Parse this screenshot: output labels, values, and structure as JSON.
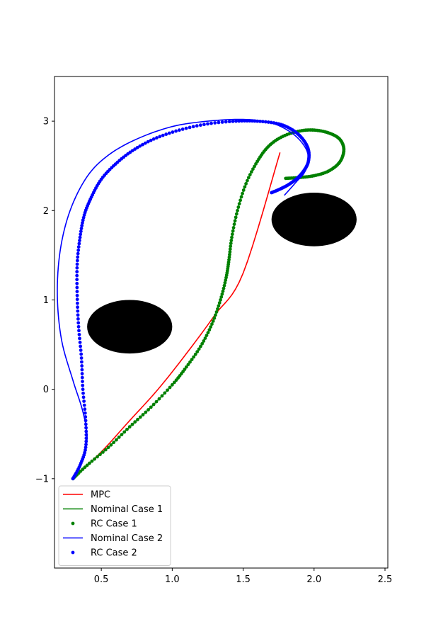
{
  "chart_data": {
    "type": "line",
    "title": "",
    "xlabel": "",
    "ylabel": "",
    "xlim": [
      0.17,
      2.52
    ],
    "ylim": [
      -2.0,
      3.5
    ],
    "x_ticks": [
      0.5,
      1.0,
      1.5,
      2.0,
      2.5
    ],
    "x_tick_labels": [
      "0.5",
      "1.0",
      "1.5",
      "2.0",
      "2.5"
    ],
    "y_ticks": [
      -1,
      0,
      1,
      2,
      3
    ],
    "y_tick_labels": [
      "−1",
      "0",
      "1",
      "2",
      "3"
    ],
    "grid": false,
    "legend_position": "lower-left",
    "obstacles": [
      {
        "name": "obstacle-1",
        "cx": 0.7,
        "cy": 0.7,
        "rx": 0.3,
        "ry": 0.3,
        "color": "#000000"
      },
      {
        "name": "obstacle-2",
        "cx": 2.0,
        "cy": 1.9,
        "rx": 0.3,
        "ry": 0.3,
        "color": "#000000"
      }
    ],
    "series": [
      {
        "name": "MPC",
        "style": "line",
        "color": "#ff0000",
        "x": [
          0.3,
          0.5,
          0.7,
          0.9,
          1.1,
          1.3,
          1.5,
          1.76
        ],
        "y": [
          -1.0,
          -0.7,
          -0.35,
          0.0,
          0.4,
          0.83,
          1.3,
          2.65
        ]
      },
      {
        "name": "Nominal Case 1",
        "style": "line",
        "color": "#008000",
        "x": [
          0.3,
          0.4,
          0.55,
          0.7,
          0.85,
          1.0,
          1.1,
          1.2,
          1.28,
          1.34,
          1.38,
          1.4,
          1.42,
          1.46,
          1.52,
          1.6,
          1.68,
          1.78,
          1.9,
          2.0,
          2.1,
          2.18,
          2.21,
          2.18,
          2.1,
          2.0,
          1.9,
          1.8
        ],
        "y": [
          -1.0,
          -0.85,
          -0.65,
          -0.42,
          -0.2,
          0.05,
          0.25,
          0.48,
          0.73,
          1.0,
          1.25,
          1.45,
          1.7,
          2.0,
          2.3,
          2.55,
          2.72,
          2.83,
          2.89,
          2.9,
          2.87,
          2.8,
          2.68,
          2.54,
          2.44,
          2.39,
          2.37,
          2.36
        ]
      },
      {
        "name": "RC Case 1",
        "style": "scatter",
        "color": "#008000",
        "x": [
          0.3,
          0.4,
          0.55,
          0.7,
          0.85,
          1.0,
          1.1,
          1.2,
          1.28,
          1.34,
          1.38,
          1.4,
          1.42,
          1.46,
          1.52,
          1.6,
          1.68,
          1.78,
          1.9,
          2.0,
          2.1,
          2.18,
          2.21,
          2.18,
          2.1,
          2.0,
          1.9,
          1.8
        ],
        "y": [
          -1.0,
          -0.85,
          -0.65,
          -0.42,
          -0.2,
          0.05,
          0.25,
          0.48,
          0.73,
          1.0,
          1.25,
          1.45,
          1.7,
          2.0,
          2.3,
          2.55,
          2.72,
          2.83,
          2.89,
          2.9,
          2.87,
          2.8,
          2.68,
          2.54,
          2.44,
          2.39,
          2.37,
          2.36
        ]
      },
      {
        "name": "Nominal Case 2",
        "style": "line",
        "color": "#0000ff",
        "x": [
          0.3,
          0.36,
          0.4,
          0.37,
          0.3,
          0.22,
          0.19,
          0.21,
          0.28,
          0.4,
          0.55,
          0.75,
          1.0,
          1.25,
          1.5,
          1.7,
          1.85,
          1.94,
          1.96,
          1.93,
          1.88,
          1.83,
          1.79
        ],
        "y": [
          -1.0,
          -0.8,
          -0.55,
          -0.25,
          0.1,
          0.55,
          1.05,
          1.55,
          2.0,
          2.38,
          2.62,
          2.8,
          2.94,
          3.0,
          3.02,
          2.98,
          2.86,
          2.7,
          2.55,
          2.42,
          2.33,
          2.24,
          2.17
        ]
      },
      {
        "name": "RC Case 2",
        "style": "scatter",
        "color": "#0000ff",
        "x": [
          0.3,
          0.35,
          0.39,
          0.39,
          0.37,
          0.36,
          0.34,
          0.33,
          0.33,
          0.35,
          0.38,
          0.43,
          0.5,
          0.6,
          0.72,
          0.87,
          1.05,
          1.25,
          1.45,
          1.6,
          1.75,
          1.85,
          1.92,
          1.96,
          1.96,
          1.93,
          1.88,
          1.82,
          1.76,
          1.7
        ],
        "y": [
          -1.0,
          -0.85,
          -0.65,
          -0.35,
          0.0,
          0.35,
          0.7,
          1.05,
          1.4,
          1.7,
          1.95,
          2.15,
          2.35,
          2.52,
          2.67,
          2.8,
          2.9,
          2.97,
          3.0,
          3.0,
          2.97,
          2.9,
          2.8,
          2.68,
          2.55,
          2.45,
          2.36,
          2.29,
          2.24,
          2.2
        ]
      }
    ],
    "legend": [
      "MPC",
      "Nominal Case 1",
      "RC Case 1",
      "Nominal Case 2",
      "RC Case 2"
    ]
  }
}
